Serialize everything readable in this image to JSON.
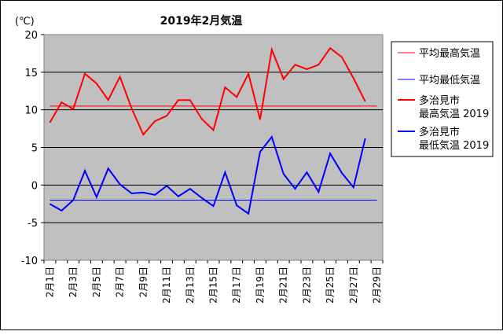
{
  "chart_data": {
    "type": "line",
    "title": "2019年2月気温",
    "ylabel": "(℃)",
    "ylim": [
      -10,
      20
    ],
    "yticks": [
      20,
      15,
      10,
      5,
      0,
      -5,
      -10
    ],
    "categories": [
      "2月1日",
      "2月2日",
      "2月3日",
      "2月4日",
      "2月5日",
      "2月6日",
      "2月7日",
      "2月8日",
      "2月9日",
      "2月10日",
      "2月11日",
      "2月12日",
      "2月13日",
      "2月14日",
      "2月15日",
      "2月16日",
      "2月17日",
      "2月18日",
      "2月19日",
      "2月20日",
      "2月21日",
      "2月22日",
      "2月23日",
      "2月24日",
      "2月25日",
      "2月26日",
      "2月27日",
      "2月28日",
      "2月29日"
    ],
    "xtick_labels": [
      "2月1日",
      "2月3日",
      "2月5日",
      "2月7日",
      "2月9日",
      "2月11日",
      "2月13日",
      "2月15日",
      "2月17日",
      "2月19日",
      "2月21日",
      "2月23日",
      "2月25日",
      "2月27日",
      "2月29日"
    ],
    "grid": true,
    "plot_background": "#c0c0c0",
    "legend_position": "right",
    "series": [
      {
        "name": "平均最高気温",
        "color": "#ff0000",
        "width": 1,
        "values": [
          10.5,
          10.5,
          10.5,
          10.5,
          10.5,
          10.5,
          10.5,
          10.5,
          10.5,
          10.5,
          10.5,
          10.5,
          10.5,
          10.5,
          10.5,
          10.5,
          10.5,
          10.5,
          10.5,
          10.5,
          10.5,
          10.5,
          10.5,
          10.5,
          10.5,
          10.5,
          10.5,
          10.5,
          10.5
        ]
      },
      {
        "name": "平均最低気温",
        "color": "#0000ff",
        "width": 1,
        "values": [
          -2.0,
          -2.0,
          -2.0,
          -2.0,
          -2.0,
          -2.0,
          -2.0,
          -2.0,
          -2.0,
          -2.0,
          -2.0,
          -2.0,
          -2.0,
          -2.0,
          -2.0,
          -2.0,
          -2.0,
          -2.0,
          -2.0,
          -2.0,
          -2.0,
          -2.0,
          -2.0,
          -2.0,
          -2.0,
          -2.0,
          -2.0,
          -2.0,
          -2.0
        ]
      },
      {
        "name": "多治見市\n最高気温 2019",
        "color": "#ff0000",
        "width": 2,
        "values": [
          8.3,
          11.0,
          10.1,
          14.8,
          13.5,
          11.3,
          14.4,
          10.2,
          6.7,
          8.5,
          9.2,
          11.3,
          11.3,
          8.8,
          7.3,
          13.0,
          11.7,
          14.8,
          8.7,
          18.0,
          14.1,
          16.0,
          15.4,
          16.0,
          18.2,
          17.0,
          14.2,
          11.1,
          null
        ]
      },
      {
        "name": "多治見市\n最低気温 2019",
        "color": "#0000ff",
        "width": 2,
        "values": [
          -2.5,
          -3.4,
          -2.0,
          1.9,
          -1.6,
          2.2,
          0.1,
          -1.1,
          -1.0,
          -1.3,
          -0.1,
          -1.5,
          -0.5,
          -1.7,
          -2.8,
          1.7,
          -2.7,
          -3.8,
          4.4,
          6.4,
          1.5,
          -0.5,
          1.7,
          -0.9,
          4.2,
          1.6,
          -0.3,
          6.2,
          null
        ]
      }
    ]
  }
}
